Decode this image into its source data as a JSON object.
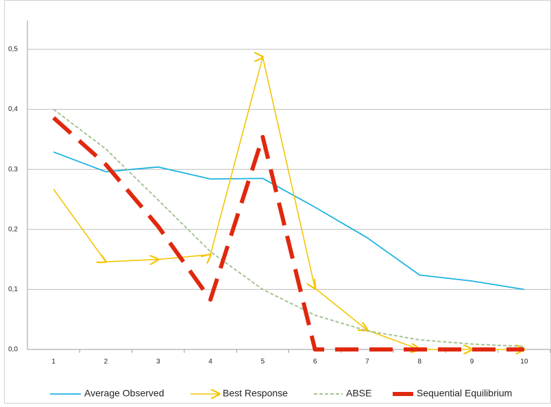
{
  "chart_data": {
    "type": "line",
    "categories": [
      "1",
      "2",
      "3",
      "4",
      "5",
      "6",
      "7",
      "8",
      "9",
      "10"
    ],
    "ylim": [
      0,
      0.5
    ],
    "yticks": [
      {
        "value": 0,
        "label": "0,0"
      },
      {
        "value": 0.1,
        "label": "0,1"
      },
      {
        "value": 0.2,
        "label": "0,2"
      },
      {
        "value": 0.3,
        "label": "0,3"
      },
      {
        "value": 0.4,
        "label": "0,4"
      },
      {
        "value": 0.5,
        "label": "0,5"
      }
    ],
    "grid": true,
    "legend": "bottom",
    "series": [
      {
        "name": "Average Observed",
        "color": "#1ab2e0",
        "line_style": "solid",
        "values": [
          0.329,
          0.296,
          0.304,
          0.284,
          0.285,
          0.237,
          0.186,
          0.124,
          0.114,
          0.1
        ]
      },
      {
        "name": "Best Response",
        "color": "#f5c400",
        "line_style": "arrows",
        "values": [
          0.267,
          0.146,
          0.15,
          0.158,
          0.487,
          0.102,
          0.032,
          0,
          0,
          0
        ]
      },
      {
        "name": "ABSE",
        "color": "#a3c293",
        "line_style": "dashed",
        "values": [
          0.4,
          0.334,
          0.249,
          0.163,
          0.1,
          0.057,
          0.031,
          0.016,
          0.009,
          0.005
        ]
      },
      {
        "name": "Sequential Equilibrium",
        "color": "#e0280e",
        "line_style": "thick-dashed",
        "values": [
          0.386,
          0.308,
          0.205,
          0.083,
          0.354,
          0,
          0,
          0,
          0,
          0
        ]
      }
    ]
  }
}
